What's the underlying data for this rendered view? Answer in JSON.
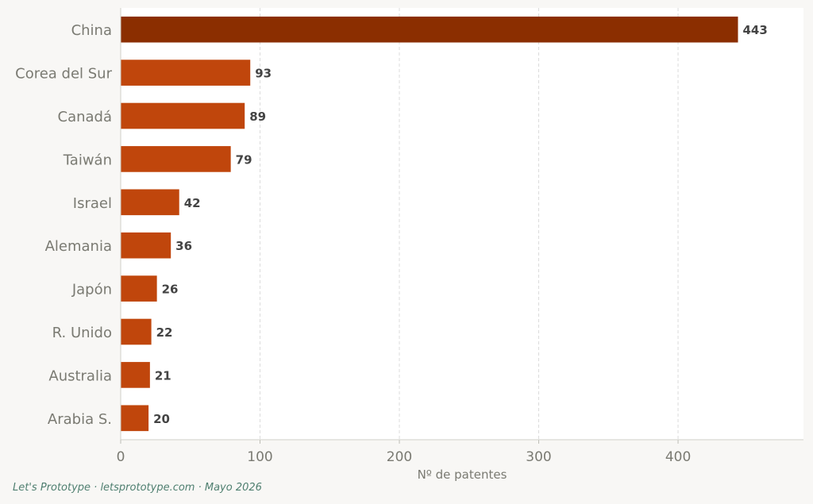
{
  "chart_data": {
    "type": "bar",
    "orientation": "horizontal",
    "categories": [
      "China",
      "Corea del Sur",
      "Canadá",
      "Taiwán",
      "Israel",
      "Alemania",
      "Japón",
      "R. Unido",
      "Australia",
      "Arabia S."
    ],
    "values": [
      443,
      93,
      89,
      79,
      42,
      36,
      26,
      22,
      21,
      20
    ],
    "xlabel": "Nº de patentes",
    "ylabel": "",
    "xlim": [
      0,
      490
    ],
    "xticks": [
      0,
      100,
      200,
      300,
      400
    ],
    "grid": true,
    "colors": {
      "highlight": "#8b2e00",
      "bar": "#c0460c"
    }
  },
  "footer": {
    "credit": "Let's Prototype · letsprototype.com · Mayo 2026"
  }
}
